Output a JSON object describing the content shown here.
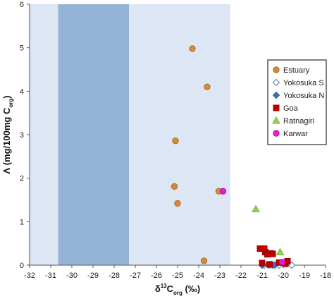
{
  "chart_data": {
    "type": "scatter",
    "xlabel": {
      "prefix": "δ",
      "sup": "13",
      "main": "C",
      "sub": "org",
      "suffix": " (‰)"
    },
    "ylabel": {
      "main": "Λ (mg/100mg C",
      "sub": "org",
      "suffix": ")"
    },
    "xlim": [
      -32,
      -18
    ],
    "ylim": [
      0,
      6
    ],
    "x_ticks": [
      -32,
      -31,
      -30,
      -29,
      -28,
      -27,
      -26,
      -25,
      -24,
      -23,
      -22,
      -21,
      -20,
      -19,
      -18
    ],
    "x_tick_labels": [
      "-32",
      "-31",
      "-30",
      "-29",
      "-28",
      "-27",
      "-26",
      "-25",
      "-24",
      "-23",
      "-22",
      "-21",
      "-20",
      "-19",
      "-18"
    ],
    "y_ticks": [
      0,
      1,
      2,
      3,
      4,
      5,
      6
    ],
    "y_tick_labels": [
      "0",
      "1",
      "2",
      "3",
      "4",
      "5",
      "6"
    ],
    "grid": false,
    "legend_position": "right",
    "shaded_regions": [
      {
        "x0": -32,
        "x1": -22.5,
        "color": "#dce6f4"
      },
      {
        "x0": -30.65,
        "x1": -27.3,
        "color": "#95b3d7"
      }
    ],
    "series": [
      {
        "name": "Estuary",
        "marker": "circle",
        "color": "#d08a3a",
        "stroke": "#b77126",
        "points": [
          [
            -24.3,
            4.98
          ],
          [
            -23.6,
            4.1
          ],
          [
            -25.1,
            2.86
          ],
          [
            -23.05,
            1.7
          ],
          [
            -25.15,
            1.81
          ],
          [
            -25.0,
            1.42
          ],
          [
            -23.75,
            0.1
          ],
          [
            -20.1,
            0.05
          ]
        ]
      },
      {
        "name": "Yokosuka S",
        "marker": "diamond-open",
        "color": "#ffffff",
        "stroke": "#4a7fc1",
        "points": [
          [
            -20.6,
            0.0
          ],
          [
            -20.2,
            0.0
          ],
          [
            -19.6,
            0.0
          ],
          [
            -20.9,
            0.0
          ]
        ]
      },
      {
        "name": "Yokosuka N",
        "marker": "diamond",
        "color": "#3f72b5",
        "stroke": "#2f5e9a",
        "points": [
          [
            -20.7,
            0.0
          ],
          [
            -20.5,
            0.0
          ],
          [
            -20.4,
            0.0
          ],
          [
            -21.0,
            0.0
          ]
        ]
      },
      {
        "name": "Goa",
        "marker": "square",
        "color": "#c00000",
        "stroke": "#a00000",
        "points": [
          [
            -21.1,
            0.38
          ],
          [
            -20.9,
            0.38
          ],
          [
            -20.85,
            0.3
          ],
          [
            -20.75,
            0.25
          ],
          [
            -20.6,
            0.27
          ],
          [
            -20.5,
            0.26
          ],
          [
            -20.2,
            0.06
          ],
          [
            -19.9,
            0.03
          ],
          [
            -19.8,
            0.09
          ],
          [
            -21.0,
            0.05
          ],
          [
            -20.65,
            0.02
          ]
        ]
      },
      {
        "name": "Ratnagiri",
        "marker": "triangle",
        "color": "#92d050",
        "stroke": "#7ab83c",
        "points": [
          [
            -21.3,
            1.29
          ],
          [
            -20.15,
            0.3
          ]
        ]
      },
      {
        "name": "Karwar",
        "marker": "circle",
        "color": "#e020d0",
        "stroke": "#b510a8",
        "points": [
          [
            -22.85,
            1.7
          ],
          [
            -20.05,
            0.07
          ]
        ]
      }
    ]
  }
}
